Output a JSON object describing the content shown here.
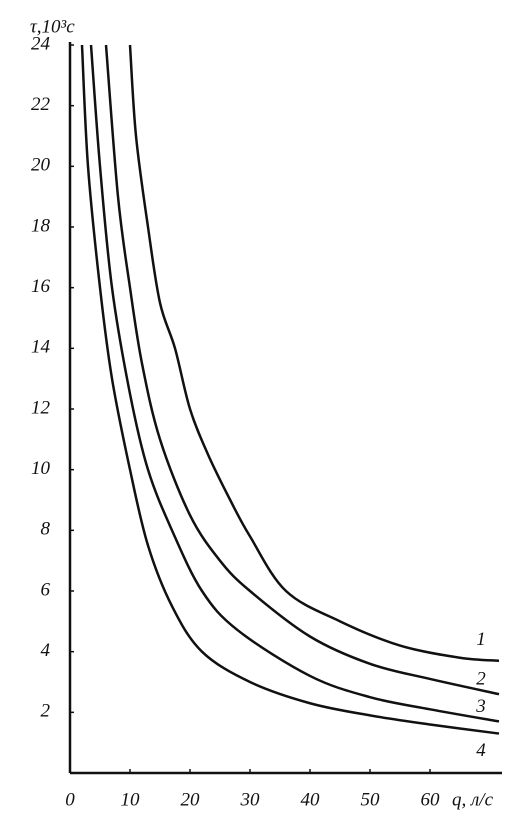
{
  "chart_data": {
    "type": "line",
    "ylabel": "τ,10³с",
    "xlabel": "q, л/с",
    "xlim": [
      0,
      72
    ],
    "ylim": [
      0,
      24
    ],
    "xticks": [
      0,
      10,
      20,
      30,
      40,
      50,
      60
    ],
    "yticks": [
      2,
      4,
      6,
      8,
      10,
      12,
      14,
      16,
      18,
      20,
      22,
      24
    ],
    "series": [
      {
        "name": "1",
        "color": "#111111",
        "x": [
          10,
          11,
          13,
          15,
          17.5,
          20,
          23,
          26.7,
          30,
          36,
          45,
          55,
          65,
          71.5
        ],
        "values": [
          24,
          21,
          18,
          15.5,
          14,
          12,
          10.5,
          9,
          7.8,
          6,
          5,
          4.2,
          3.8,
          3.7
        ]
      },
      {
        "name": "2",
        "color": "#111111",
        "x": [
          6,
          8,
          10,
          12,
          15,
          20,
          25,
          30,
          40,
          50,
          60,
          71.5
        ],
        "values": [
          24,
          19,
          16,
          13.5,
          11,
          8.5,
          7,
          6,
          4.5,
          3.6,
          3.1,
          2.6
        ]
      },
      {
        "name": "3",
        "color": "#111111",
        "x": [
          3.5,
          5,
          7,
          10,
          13,
          17,
          22,
          28,
          40,
          50,
          60,
          71.5
        ],
        "values": [
          24,
          20,
          16,
          12.5,
          10,
          8,
          6,
          4.7,
          3.2,
          2.5,
          2.1,
          1.7
        ]
      },
      {
        "name": "4",
        "color": "#111111",
        "x": [
          2,
          3,
          5,
          7,
          10,
          13,
          17,
          22,
          30,
          40,
          50,
          60,
          71.5
        ],
        "values": [
          24,
          20,
          16,
          13,
          10,
          7.5,
          5.5,
          4,
          3,
          2.3,
          1.9,
          1.6,
          1.3
        ]
      }
    ]
  }
}
